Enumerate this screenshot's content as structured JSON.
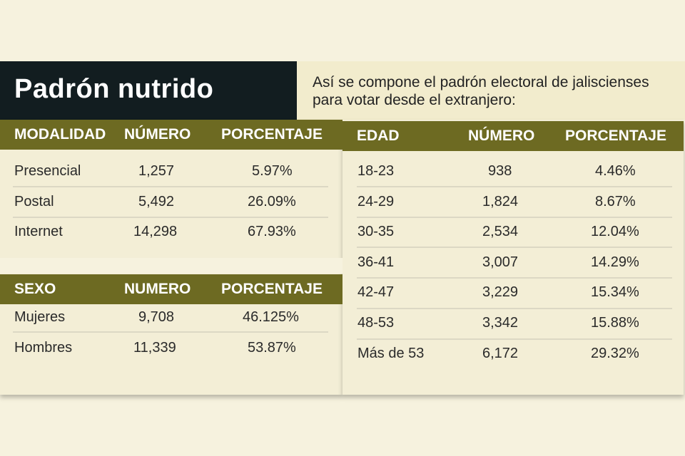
{
  "title": "Padrón nutrido",
  "subtitle": "Así se compone el padrón electoral de jaliscienses para votar desde el extranjero:",
  "colors": {
    "header_bar": "#6d6a22",
    "title_bg": "#121d20",
    "background": "#f6f2de"
  },
  "modalidad": {
    "headers": [
      "MODALIDAD",
      "NÚMERO",
      "PORCENTAJE"
    ],
    "rows": [
      [
        "Presencial",
        "1,257",
        "5.97%"
      ],
      [
        "Postal",
        "5,492",
        "26.09%"
      ],
      [
        "Internet",
        "14,298",
        "67.93%"
      ]
    ]
  },
  "sexo": {
    "headers": [
      "SEXO",
      "NUMERO",
      "PORCENTAJE"
    ],
    "rows": [
      [
        "Mujeres",
        "9,708",
        "46.125%"
      ],
      [
        "Hombres",
        "11,339",
        "53.87%"
      ]
    ]
  },
  "edad": {
    "headers": [
      "EDAD",
      "NÚMERO",
      "PORCENTAJE"
    ],
    "rows": [
      [
        "18-23",
        "938",
        "4.46%"
      ],
      [
        "24-29",
        "1,824",
        "8.67%"
      ],
      [
        "30-35",
        "2,534",
        "12.04%"
      ],
      [
        "36-41",
        "3,007",
        "14.29%"
      ],
      [
        "42-47",
        "3,229",
        "15.34%"
      ],
      [
        "48-53",
        "3,342",
        "15.88%"
      ],
      [
        "Más de 53",
        "6,172",
        "29.32%"
      ]
    ]
  }
}
